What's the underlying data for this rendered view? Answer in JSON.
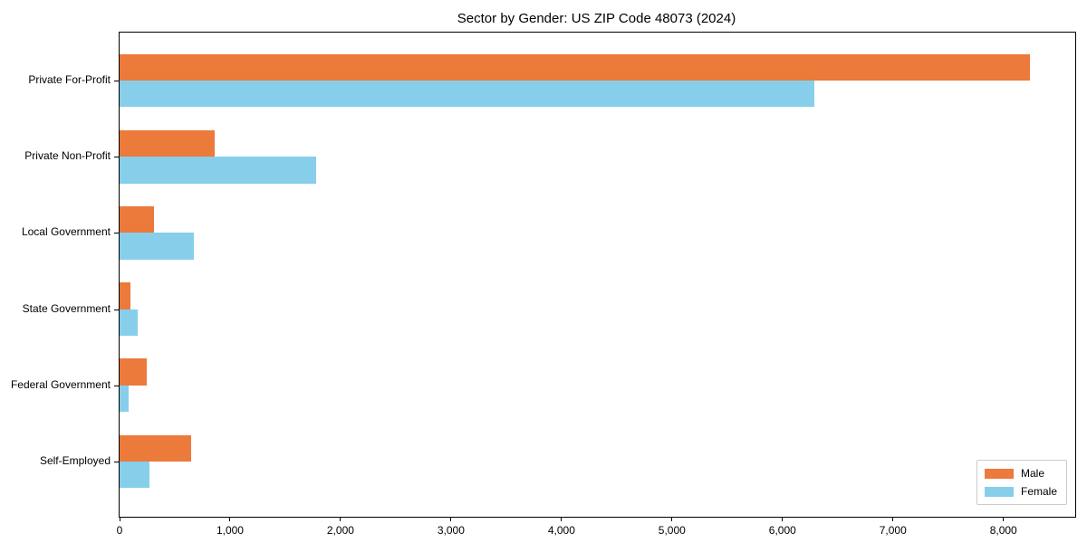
{
  "chart_data": {
    "type": "bar",
    "orientation": "horizontal",
    "title": "Sector by Gender: US ZIP Code 48073 (2024)",
    "categories": [
      "Private For-Profit",
      "Private Non-Profit",
      "Local Government",
      "State Government",
      "Federal Government",
      "Self-Employed"
    ],
    "series": [
      {
        "name": "Male",
        "color": "#EB7A3B",
        "values": [
          8240,
          860,
          310,
          95,
          245,
          650
        ]
      },
      {
        "name": "Female",
        "color": "#87CEEB",
        "values": [
          6290,
          1780,
          670,
          160,
          80,
          270
        ]
      }
    ],
    "xlabel": "",
    "ylabel": "",
    "xlim": [
      0,
      8650
    ],
    "xticks": [
      0,
      1000,
      2000,
      3000,
      4000,
      5000,
      6000,
      7000,
      8000
    ],
    "xtick_format": "comma",
    "grid": false,
    "legend_position": "lower right",
    "frame_color": "#000000",
    "background_color": "#ffffff"
  }
}
